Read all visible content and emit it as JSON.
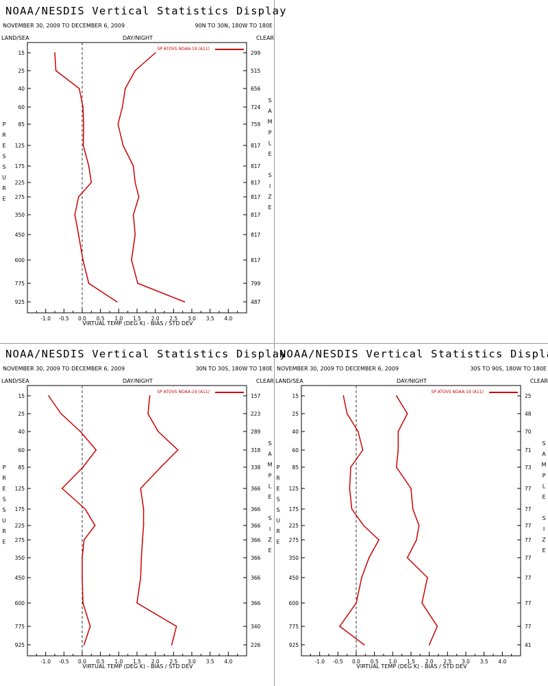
{
  "colors": {
    "series": "#cc0000",
    "frame": "#000000",
    "zero": "#333333"
  },
  "chart_data": [
    {
      "type": "line",
      "title": "NOAA/NESDIS Vertical Statistics Display",
      "date_range": "NOVEMBER 30, 2009 TO DECEMBER 6, 2009",
      "region": "90N TO 30N, 180W TO 180E",
      "top_left_label": "LAND/SEA",
      "top_center_label": "DAY/NIGHT",
      "top_right_label": "CLEAR",
      "ylabel": "PRESSURE",
      "right_label": "SAMPLE SIZE",
      "xlabel": "VIRTUAL TEMP (DEG K) - BIAS / STD DEV",
      "xlim": [
        -1.5,
        4.5
      ],
      "x_ticks": [
        "-1.0",
        "-0.5",
        "0.0",
        "0.5",
        "1.0",
        "1.5",
        "2.0",
        "2.5",
        "3.0",
        "3.5",
        "4.0"
      ],
      "pressure_levels": [
        "15",
        "25",
        "40",
        "60",
        "85",
        "125",
        "175",
        "225",
        "275",
        "350",
        "450",
        "600",
        "775",
        "925"
      ],
      "legend": "SP ATOVS NOAA-19 (A11)",
      "sample_size": [
        "299",
        "515",
        "656",
        "724",
        "759",
        "817",
        "817",
        "817",
        "817",
        "817",
        "817",
        "817",
        "799",
        "487"
      ],
      "series": [
        {
          "name": "BIAS",
          "values": [
            -0.75,
            -0.72,
            -0.08,
            0.02,
            0.04,
            0.03,
            0.18,
            0.25,
            -0.1,
            -0.2,
            -0.1,
            0.02,
            0.18,
            0.95
          ]
        },
        {
          "name": "STD DEV",
          "values": [
            2.0,
            1.45,
            1.18,
            1.1,
            0.98,
            1.12,
            1.4,
            1.45,
            1.55,
            1.4,
            1.45,
            1.35,
            1.52,
            2.8
          ]
        }
      ]
    },
    {
      "type": "line",
      "title": "NOAA/NESDIS Vertical Statistics Display",
      "date_range": "NOVEMBER 30, 2009 TO DECEMBER 6, 2009",
      "region": "30N TO 30S, 180W TO 180E",
      "top_left_label": "LAND/SEA",
      "top_center_label": "DAY/NIGHT",
      "top_right_label": "CLEAR",
      "ylabel": "PRESSURE",
      "right_label": "SAMPLE SIZE",
      "xlabel": "VIRTUAL TEMP (DEG K) - BIAS / STD DEV",
      "xlim": [
        -1.5,
        4.5
      ],
      "x_ticks": [
        "-1.0",
        "-0.5",
        "0.0",
        "0.5",
        "1.0",
        "1.5",
        "2.0",
        "2.5",
        "3.0",
        "3.5",
        "4.0"
      ],
      "pressure_levels": [
        "15",
        "25",
        "40",
        "60",
        "85",
        "125",
        "175",
        "225",
        "275",
        "350",
        "450",
        "600",
        "775",
        "925"
      ],
      "legend": "SP ATOVS NOAA-19 (A11)",
      "sample_size": [
        "157",
        "223",
        "289",
        "318",
        "338",
        "366",
        "366",
        "366",
        "366",
        "366",
        "366",
        "366",
        "340",
        "226"
      ],
      "series": [
        {
          "name": "BIAS",
          "values": [
            -0.92,
            -0.58,
            -0.05,
            0.38,
            0.02,
            -0.55,
            0.08,
            0.35,
            0.05,
            0.0,
            0.0,
            0.02,
            0.22,
            0.05
          ]
        },
        {
          "name": "STD DEV",
          "values": [
            1.85,
            1.8,
            2.08,
            2.62,
            2.15,
            1.6,
            1.68,
            1.68,
            1.65,
            1.62,
            1.6,
            1.5,
            2.58,
            2.45
          ]
        }
      ]
    },
    {
      "type": "line",
      "title": "NOAA/NESDIS Vertical Statistics Display",
      "date_range": "NOVEMBER 30, 2009 TO DECEMBER 6, 2009",
      "region": "30S TO 90S, 180W TO 180E",
      "top_left_label": "LAND/SEA",
      "top_center_label": "DAY/NIGHT",
      "top_right_label": "CLEAR",
      "ylabel": "PRESSURE",
      "right_label": "SAMPLE SIZE",
      "xlabel": "VIRTUAL TEMP (DEG K) - BIAS / STD DEV",
      "xlim": [
        -1.5,
        4.5
      ],
      "x_ticks": [
        "-1.0",
        "-0.5",
        "0.0",
        "0.5",
        "1.0",
        "1.5",
        "2.0",
        "2.5",
        "3.0",
        "3.5",
        "4.0"
      ],
      "pressure_levels": [
        "15",
        "25",
        "40",
        "60",
        "85",
        "125",
        "175",
        "225",
        "275",
        "350",
        "450",
        "600",
        "775",
        "925"
      ],
      "legend": "SP ATOVS NOAA-19 (A11)",
      "sample_size": [
        "25",
        "48",
        "70",
        "71",
        "73",
        "77",
        "77",
        "77",
        "77",
        "77",
        "77",
        "77",
        "77",
        "41"
      ],
      "series": [
        {
          "name": "BIAS",
          "values": [
            -0.35,
            -0.25,
            0.05,
            0.18,
            -0.15,
            -0.18,
            -0.12,
            0.2,
            0.62,
            0.35,
            0.15,
            0.0,
            -0.45,
            0.22
          ]
        },
        {
          "name": "STD DEV",
          "values": [
            1.1,
            1.4,
            1.15,
            1.15,
            1.1,
            1.5,
            1.55,
            1.72,
            1.65,
            1.4,
            1.95,
            1.8,
            2.22,
            2.0
          ]
        }
      ]
    }
  ]
}
